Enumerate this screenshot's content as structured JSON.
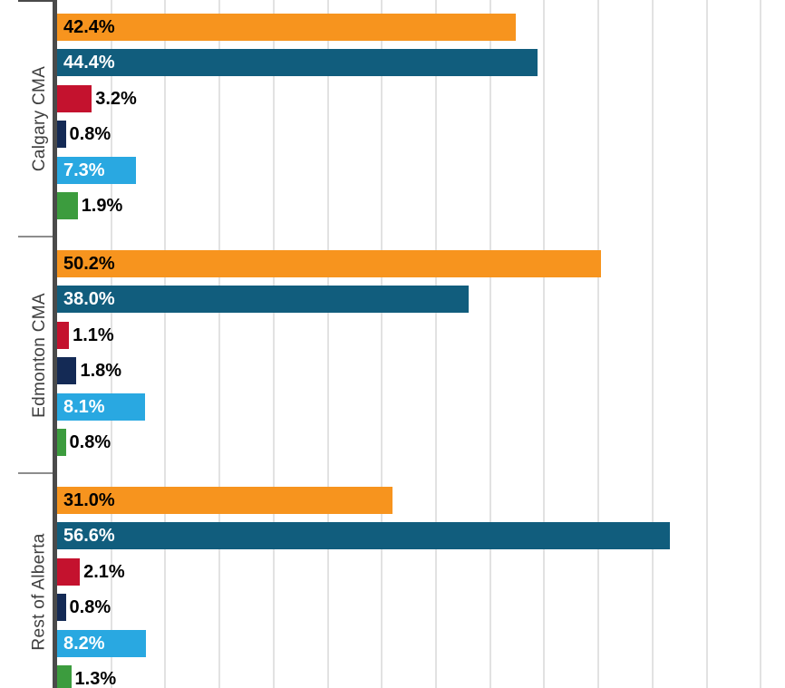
{
  "chart_data": {
    "type": "bar",
    "orientation": "horizontal",
    "title": "",
    "legend": "none",
    "categories": [
      "Calgary CMA",
      "Edmonton CMA",
      "Rest of Alberta"
    ],
    "series": [
      {
        "name": "series-1-orange",
        "color": "#F7941E",
        "label_color_inside": "#000000",
        "values": [
          42.4,
          50.2,
          31.0
        ],
        "labels": [
          "42.4%",
          "50.2%",
          "31.0%"
        ]
      },
      {
        "name": "series-2-teal",
        "color": "#115D7D",
        "label_color_inside": "#ffffff",
        "values": [
          44.4,
          38.0,
          56.6
        ],
        "labels": [
          "44.4%",
          "38.0%",
          "56.6%"
        ]
      },
      {
        "name": "series-3-red",
        "color": "#C4122E",
        "label_color_inside": "#ffffff",
        "values": [
          3.2,
          1.1,
          2.1
        ],
        "labels": [
          "3.2%",
          "1.1%",
          "2.1%"
        ]
      },
      {
        "name": "series-4-navy",
        "color": "#142A55",
        "label_color_inside": "#ffffff",
        "values": [
          0.8,
          1.8,
          0.8
        ],
        "labels": [
          "0.8%",
          "1.8%",
          "0.8%"
        ]
      },
      {
        "name": "series-5-light-blue",
        "color": "#29A8E1",
        "label_color_inside": "#ffffff",
        "values": [
          7.3,
          8.1,
          8.2
        ],
        "labels": [
          "7.3%",
          "8.1%",
          "8.2%"
        ]
      },
      {
        "name": "series-6-green",
        "color": "#3C9C3E",
        "label_color_inside": "#000000",
        "values": [
          1.9,
          0.8,
          1.3
        ],
        "labels": [
          "1.9%",
          "0.8%",
          "1.3%"
        ]
      }
    ],
    "x_axis": {
      "min_percent": 0,
      "visible_max_percent": 67,
      "gridline_step_percent": 5,
      "tick_labels_visible": false,
      "grid": true
    },
    "y_axis": {
      "tick_labels_visible": true,
      "label_rotation_deg": -90
    },
    "value_label_format": "one_decimal_percent",
    "label_outside_color": "#000000"
  },
  "colors": {
    "background": "#ffffff",
    "gridline": "#e2e2e2",
    "axis_line": "#4a4a4a",
    "group_tick": "#8d8d8d",
    "category_text": "#3f3f3f"
  }
}
